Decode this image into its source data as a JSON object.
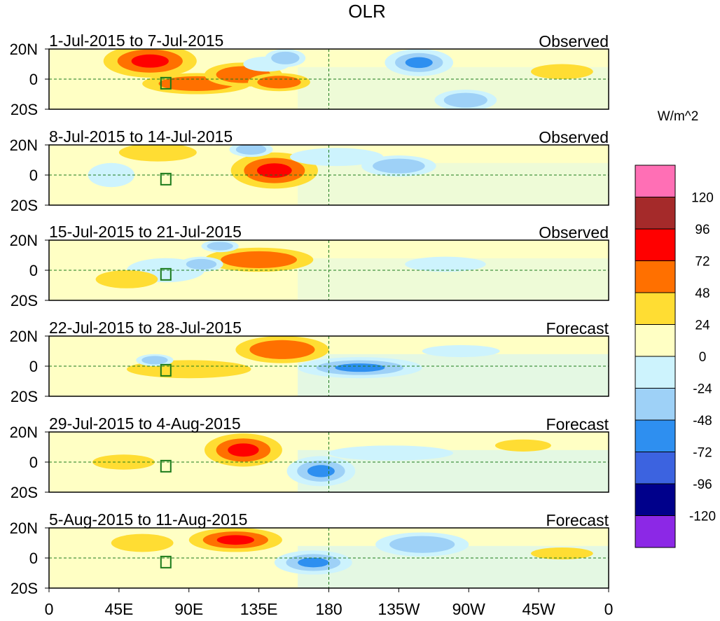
{
  "chart_data": {
    "type": "heatmap",
    "title": "OLR",
    "units": "W/m^2",
    "x_ticks": [
      "0",
      "45E",
      "90E",
      "135E",
      "180",
      "135W",
      "90W",
      "45W",
      "0"
    ],
    "x_tick_values": [
      0,
      45,
      90,
      135,
      180,
      225,
      270,
      315,
      360
    ],
    "y_ticks": [
      "20N",
      "0",
      "20S"
    ],
    "y_tick_values": [
      20,
      0,
      -20
    ],
    "xlim": [
      0,
      360
    ],
    "ylim": [
      -20,
      20
    ],
    "colorbar": {
      "levels": [
        "120",
        "96",
        "72",
        "48",
        "24",
        "0",
        "-24",
        "-48",
        "-72",
        "-96",
        "-120"
      ],
      "colors": [
        "#ff6fb5",
        "#a52a2a",
        "#ff0000",
        "#ff7000",
        "#ffdd33",
        "#ffffc4",
        "#cdf3fd",
        "#9ed1f7",
        "#2e8ff0",
        "#3c63e0",
        "#00008b",
        "#8c28e6"
      ]
    },
    "panels": [
      {
        "date_range": "1-Jul-2015 to 7-Jul-2015",
        "status": "Observed",
        "anomalies": [
          {
            "lon": 65,
            "lat": 12,
            "w": 30,
            "h": 11,
            "levels": [
              24,
              48,
              72
            ]
          },
          {
            "lon": 95,
            "lat": -3,
            "w": 35,
            "h": 7,
            "levels": [
              24,
              48
            ]
          },
          {
            "lon": 125,
            "lat": 3,
            "w": 25,
            "h": 8,
            "levels": [
              24,
              48
            ]
          },
          {
            "lon": 148,
            "lat": -2,
            "w": 20,
            "h": 6,
            "levels": [
              24,
              48
            ]
          },
          {
            "lon": 140,
            "lat": 10,
            "w": 15,
            "h": 5,
            "levels": [
              -24
            ]
          },
          {
            "lon": 152,
            "lat": 14,
            "w": 13,
            "h": 6,
            "levels": [
              -24,
              -48
            ]
          },
          {
            "lon": 238,
            "lat": 11,
            "w": 22,
            "h": 9,
            "levels": [
              -24,
              -48,
              -72
            ]
          },
          {
            "lon": 268,
            "lat": -14,
            "w": 20,
            "h": 7,
            "levels": [
              -24,
              -48
            ]
          },
          {
            "lon": 330,
            "lat": 5,
            "w": 20,
            "h": 5,
            "levels": [
              24
            ]
          }
        ]
      },
      {
        "date_range": "8-Jul-2015 to 14-Jul-2015",
        "status": "Observed",
        "anomalies": [
          {
            "lon": 145,
            "lat": 3,
            "w": 28,
            "h": 12,
            "levels": [
              24,
              48,
              72
            ]
          },
          {
            "lon": 70,
            "lat": 15,
            "w": 25,
            "h": 6,
            "levels": [
              24
            ]
          },
          {
            "lon": 130,
            "lat": 17,
            "w": 14,
            "h": 5,
            "levels": [
              -24,
              -48
            ]
          },
          {
            "lon": 225,
            "lat": 6,
            "w": 24,
            "h": 7,
            "levels": [
              -24,
              -48
            ]
          },
          {
            "lon": 185,
            "lat": 12,
            "w": 30,
            "h": 6,
            "levels": [
              -24
            ]
          },
          {
            "lon": 40,
            "lat": 0,
            "w": 15,
            "h": 8,
            "levels": [
              -24
            ]
          }
        ]
      },
      {
        "date_range": "15-Jul-2015 to 21-Jul-2015",
        "status": "Observed",
        "anomalies": [
          {
            "lon": 135,
            "lat": 7,
            "w": 35,
            "h": 8,
            "levels": [
              24,
              48
            ]
          },
          {
            "lon": 75,
            "lat": 0,
            "w": 25,
            "h": 8,
            "levels": [
              -24
            ]
          },
          {
            "lon": 98,
            "lat": 4,
            "w": 14,
            "h": 5,
            "levels": [
              -24,
              -48
            ]
          },
          {
            "lon": 255,
            "lat": 4,
            "w": 26,
            "h": 5,
            "levels": [
              -24
            ]
          },
          {
            "lon": 110,
            "lat": 16,
            "w": 12,
            "h": 4,
            "levels": [
              -24,
              -48
            ]
          },
          {
            "lon": 50,
            "lat": -6,
            "w": 20,
            "h": 6,
            "levels": [
              24
            ]
          }
        ]
      },
      {
        "date_range": "22-Jul-2015 to 28-Jul-2015",
        "status": "Forecast",
        "anomalies": [
          {
            "lon": 150,
            "lat": 11,
            "w": 30,
            "h": 9,
            "levels": [
              24,
              48
            ]
          },
          {
            "lon": 90,
            "lat": -2,
            "w": 40,
            "h": 6,
            "levels": [
              24
            ]
          },
          {
            "lon": 200,
            "lat": -1,
            "w": 40,
            "h": 7,
            "levels": [
              -24,
              -48,
              -72
            ]
          },
          {
            "lon": 68,
            "lat": 4,
            "w": 12,
            "h": 4,
            "levels": [
              -24,
              -48
            ]
          },
          {
            "lon": 265,
            "lat": 10,
            "w": 25,
            "h": 4,
            "levels": [
              -24
            ]
          }
        ]
      },
      {
        "date_range": "29-Jul-2015 to 4-Aug-2015",
        "status": "Forecast",
        "anomalies": [
          {
            "lon": 125,
            "lat": 8,
            "w": 25,
            "h": 11,
            "levels": [
              24,
              48,
              72
            ]
          },
          {
            "lon": 175,
            "lat": -6,
            "w": 22,
            "h": 10,
            "levels": [
              -24,
              -48,
              -72
            ]
          },
          {
            "lon": 48,
            "lat": 0,
            "w": 20,
            "h": 5,
            "levels": [
              24
            ]
          },
          {
            "lon": 220,
            "lat": 6,
            "w": 40,
            "h": 5,
            "levels": [
              -24
            ]
          },
          {
            "lon": 305,
            "lat": 11,
            "w": 18,
            "h": 4,
            "levels": [
              24
            ]
          }
        ]
      },
      {
        "date_range": "5-Aug-2015 to 11-Aug-2015",
        "status": "Forecast",
        "anomalies": [
          {
            "lon": 120,
            "lat": 12,
            "w": 30,
            "h": 8,
            "levels": [
              24,
              48,
              72
            ]
          },
          {
            "lon": 170,
            "lat": -3,
            "w": 25,
            "h": 8,
            "levels": [
              -24,
              -48,
              -72
            ]
          },
          {
            "lon": 240,
            "lat": 9,
            "w": 30,
            "h": 8,
            "levels": [
              -24,
              -48
            ]
          },
          {
            "lon": 60,
            "lat": 10,
            "w": 20,
            "h": 6,
            "levels": [
              24
            ]
          },
          {
            "lon": 330,
            "lat": 3,
            "w": 20,
            "h": 4,
            "levels": [
              24
            ]
          }
        ]
      }
    ]
  }
}
